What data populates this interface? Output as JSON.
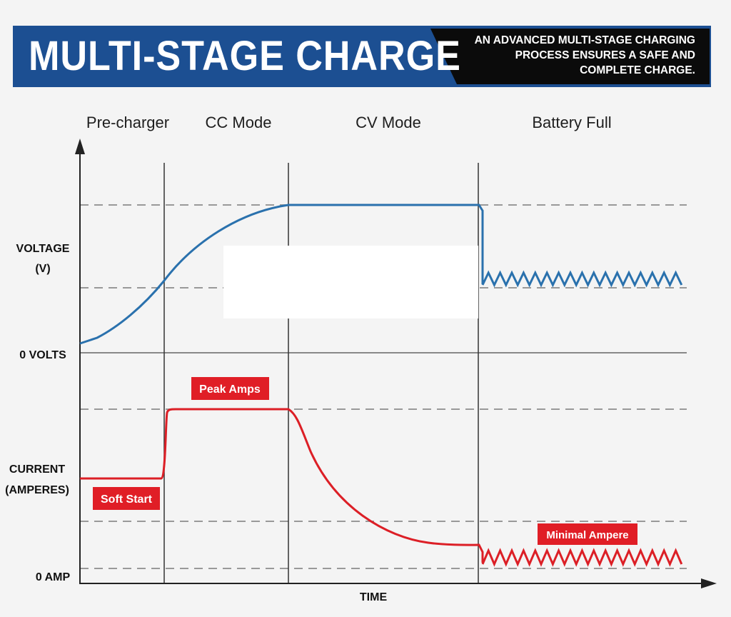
{
  "banner": {
    "title": "MULTI-STAGE CHARGE",
    "tagline_lines": [
      "AN ADVANCED MULTI-STAGE CHARGING",
      "PROCESS ENSURES A SAFE AND",
      "COMPLETE CHARGE."
    ],
    "colors": {
      "title_bg": "#1c4f92",
      "tagline_bg": "#0b0b0b"
    }
  },
  "phases": [
    "Pre-charger",
    "CC Mode",
    "CV Mode",
    "Battery Full"
  ],
  "y_axis": {
    "voltage_label": [
      "VOLTAGE",
      "(V)"
    ],
    "zero_volts": "0 VOLTS",
    "current_label": [
      "CURRENT",
      "(AMPERES)"
    ],
    "zero_amp": "0 AMP"
  },
  "x_axis": {
    "label": "TIME"
  },
  "annotations": {
    "peak": "Peak Amps",
    "soft_start": "Soft Start",
    "minimal": "Minimal Ampere"
  },
  "colors": {
    "voltage": "#2a71ad",
    "current": "#dc1f26",
    "label_bg": "#e01e26",
    "axis": "#222222",
    "dashed": "#999999"
  }
}
